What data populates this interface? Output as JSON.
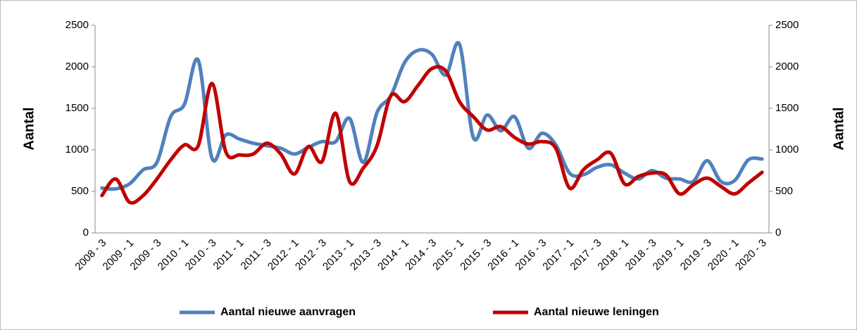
{
  "chart_data": {
    "type": "line",
    "y_label": "Aantal",
    "y2_label": "Aantal",
    "categories": [
      "2008 - 3",
      null,
      "2009 - 1",
      null,
      "2009 - 3",
      null,
      "2010 - 1",
      null,
      "2010 - 3",
      null,
      "2011 - 1",
      null,
      "2011 - 3",
      null,
      "2012 - 1",
      null,
      "2012 - 3",
      null,
      "2013 - 1",
      null,
      "2013 - 3",
      null,
      "2014 - 1",
      null,
      "2014 - 3",
      null,
      "2015 - 1",
      null,
      "2015 - 3",
      null,
      "2016 - 1",
      null,
      "2016 - 3",
      null,
      "2017 - 1",
      null,
      "2017 - 3",
      null,
      "2018 - 1",
      null,
      "2018 - 3",
      null,
      "2019 - 1",
      null,
      "2019 - 3",
      null,
      "2020 - 1",
      null,
      "2020 - 3"
    ],
    "series": [
      {
        "name": "Aantal nieuwe aanvragen",
        "color": "#4f81bd",
        "values": [
          540,
          530,
          590,
          760,
          850,
          1400,
          1550,
          2080,
          900,
          1180,
          1130,
          1080,
          1050,
          1020,
          950,
          1030,
          1100,
          1100,
          1380,
          850,
          1450,
          1650,
          2050,
          2200,
          2150,
          1900,
          2270,
          1150,
          1420,
          1230,
          1400,
          1020,
          1200,
          1060,
          720,
          700,
          790,
          820,
          720,
          650,
          750,
          660,
          650,
          620,
          870,
          620,
          630,
          880,
          890
        ]
      },
      {
        "name": "Aantal nieuwe leningen",
        "color": "#c00000",
        "axis": "y2",
        "values": [
          450,
          650,
          370,
          450,
          650,
          880,
          1060,
          1050,
          1800,
          980,
          940,
          950,
          1080,
          950,
          710,
          1040,
          860,
          1440,
          620,
          780,
          1050,
          1650,
          1580,
          1780,
          1980,
          1950,
          1580,
          1400,
          1240,
          1280,
          1150,
          1070,
          1100,
          1020,
          540,
          760,
          880,
          960,
          590,
          680,
          720,
          700,
          470,
          580,
          660,
          560,
          470,
          600,
          730
        ]
      }
    ],
    "ylim": [
      0,
      2500
    ],
    "yticks": [
      0,
      500,
      1000,
      1500,
      2000,
      2500
    ],
    "y2lim": [
      0,
      2500
    ],
    "y2ticks": [
      0,
      500,
      1000,
      1500,
      2000,
      2500
    ],
    "grid": false,
    "legend": "bottom"
  }
}
